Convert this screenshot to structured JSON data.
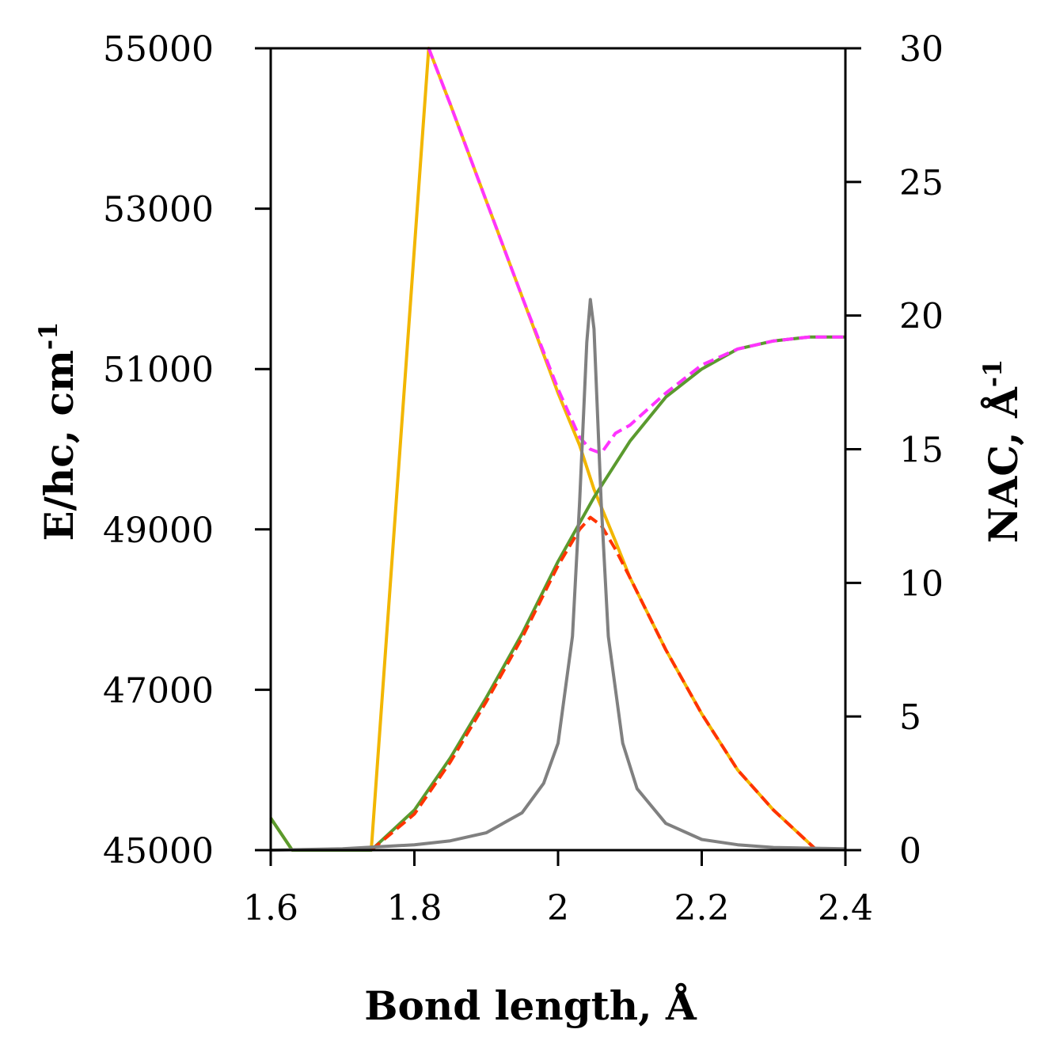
{
  "chart_data": {
    "type": "line",
    "title": "",
    "xlabel": "Bond length, Å",
    "ylabel_left": {
      "main": "E/hc, cm",
      "sup": "-1"
    },
    "ylabel_right": {
      "main": "NAC, Å",
      "sup": "-1"
    },
    "xlim": [
      1.6,
      2.4
    ],
    "ylim_left": [
      45000,
      55000
    ],
    "ylim_right": [
      0,
      30
    ],
    "x_ticks": [
      1.6,
      1.8,
      2.0,
      2.2,
      2.4
    ],
    "x_tick_labels": [
      "1.6",
      "1.8",
      "2",
      "2.2",
      "2.4"
    ],
    "y_left_ticks": [
      45000,
      47000,
      49000,
      51000,
      53000,
      55000
    ],
    "y_left_tick_labels": [
      "45000",
      "47000",
      "49000",
      "51000",
      "53000",
      "55000"
    ],
    "y_right_ticks": [
      0,
      5,
      10,
      15,
      20,
      25,
      30
    ],
    "y_right_tick_labels": [
      "0",
      "5",
      "10",
      "15",
      "20",
      "25",
      "30"
    ],
    "grid": false,
    "series": [
      {
        "color": "#f2b600",
        "style": "solid",
        "axis": "left",
        "x": [
          1.6,
          1.63,
          1.74,
          1.82,
          1.85,
          1.9,
          1.95,
          2.0,
          2.03,
          2.05,
          2.08,
          2.1,
          2.15,
          2.2,
          2.25,
          2.3,
          2.36
        ],
        "y": [
          45400,
          45000,
          45000,
          55000,
          54300,
          53100,
          51900,
          50700,
          50050,
          49500,
          48850,
          48400,
          47500,
          46700,
          46000,
          45500,
          45000
        ]
      },
      {
        "color": "#5a9a2e",
        "style": "solid",
        "axis": "left",
        "x": [
          1.6,
          1.63,
          1.74,
          1.8,
          1.85,
          1.9,
          1.95,
          2.0,
          2.05,
          2.1,
          2.15,
          2.2,
          2.25,
          2.3,
          2.35,
          2.4
        ],
        "y": [
          45400,
          45000,
          45000,
          45500,
          46150,
          46900,
          47700,
          48600,
          49400,
          50100,
          50650,
          51000,
          51250,
          51350,
          51400,
          51400
        ]
      },
      {
        "color": "#ff33ff",
        "style": "dashed",
        "axis": "left",
        "x": [
          1.82,
          1.85,
          1.9,
          1.95,
          2.0,
          2.03,
          2.045,
          2.06,
          2.08,
          2.1,
          2.15,
          2.2,
          2.25,
          2.3,
          2.35,
          2.4
        ],
        "y": [
          55000,
          54300,
          53100,
          51900,
          50750,
          50150,
          50000,
          49950,
          50200,
          50300,
          50700,
          51050,
          51250,
          51350,
          51400,
          51400
        ]
      },
      {
        "color": "#ff3300",
        "style": "dashed",
        "axis": "left",
        "x": [
          1.74,
          1.8,
          1.85,
          1.9,
          1.95,
          2.0,
          2.03,
          2.045,
          2.06,
          2.08,
          2.1,
          2.15,
          2.2,
          2.25,
          2.3,
          2.36
        ],
        "y": [
          45000,
          45450,
          46100,
          46850,
          47650,
          48550,
          49000,
          49150,
          49050,
          48750,
          48400,
          47500,
          46700,
          46000,
          45500,
          45000
        ]
      },
      {
        "color": "#808080",
        "style": "solid",
        "axis": "right",
        "x": [
          1.6,
          1.7,
          1.8,
          1.85,
          1.9,
          1.95,
          1.98,
          2.0,
          2.02,
          2.03,
          2.04,
          2.045,
          2.05,
          2.06,
          2.07,
          2.09,
          2.11,
          2.15,
          2.2,
          2.25,
          2.3,
          2.4
        ],
        "y": [
          0,
          0.05,
          0.2,
          0.35,
          0.65,
          1.4,
          2.5,
          4.0,
          8.0,
          13.0,
          19.0,
          20.6,
          19.5,
          13.0,
          8.0,
          4.0,
          2.3,
          1.0,
          0.4,
          0.2,
          0.1,
          0.05
        ]
      }
    ]
  }
}
